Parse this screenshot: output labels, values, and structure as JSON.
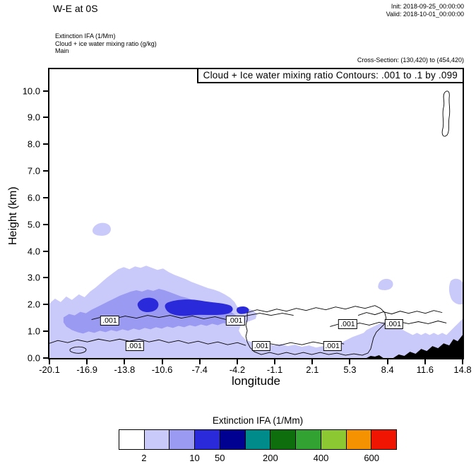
{
  "header": {
    "title": "W-E at 0S",
    "init": "Init: 2018-09-25_00:00:00",
    "valid": "Valid: 2018-10-01_00:00:00"
  },
  "annotations": {
    "field1": "Extinction IFA  (1/Mm)",
    "field2": "Cloud + ice water mixing ratio  (g/kg)",
    "field3": "Main",
    "cross_section": "Cross-Section: (130,420) to (454,420)"
  },
  "plot": {
    "contour_title": "Cloud + Ice water mixing ratio Contours: .001 to .1 by .099",
    "xlabel": "longitude",
    "ylabel": "Height (km)",
    "x_range": [
      -20.1,
      14.8
    ],
    "y_range_km": [
      0,
      10.81
    ],
    "x_ticks": [
      "-20.1",
      "-16.9",
      "-13.8",
      "-10.6",
      "-7.4",
      "-4.2",
      "-1.1",
      "2.1",
      "5.3",
      "8.4",
      "11.6",
      "14.8"
    ],
    "y_ticks": [
      "0.0",
      "1.0",
      "2.0",
      "3.0",
      "4.0",
      "5.0",
      "6.0",
      "7.0",
      "8.0",
      "9.0",
      "10.0"
    ],
    "contour_labels": [
      {
        "value": ".001",
        "lon": -15.0,
        "km": 1.41
      },
      {
        "value": ".001",
        "lon": -12.9,
        "km": 0.45
      },
      {
        "value": ".001",
        "lon": -4.4,
        "km": 1.41
      },
      {
        "value": ".001",
        "lon": -2.2,
        "km": 0.45
      },
      {
        "value": ".001",
        "lon": 3.8,
        "km": 0.45
      },
      {
        "value": ".001",
        "lon": 5.1,
        "km": 1.26
      },
      {
        "value": ".001",
        "lon": 9.0,
        "km": 1.26
      }
    ]
  },
  "colorbar": {
    "title": "Extinction IFA  (1/Mm)",
    "colors": [
      "#ffffff",
      "#cacafa",
      "#9a9af2",
      "#2a2ada",
      "#000091",
      "#008b8b",
      "#0e6e0e",
      "#32a332",
      "#8cc832",
      "#f59202",
      "#f01402"
    ],
    "labels": [
      {
        "text": "2",
        "boundary_index": 1
      },
      {
        "text": "10",
        "boundary_index": 3
      },
      {
        "text": "50",
        "boundary_index": 4
      },
      {
        "text": "200",
        "boundary_index": 6
      },
      {
        "text": "400",
        "boundary_index": 8
      },
      {
        "text": "600",
        "boundary_index": 10
      }
    ]
  },
  "chart_data": {
    "type": "heatmap",
    "subtype": "vertical-cross-section-filled-contour",
    "title": "Cloud + Ice water mixing ratio Contours: .001 to .1 by .099",
    "xlabel": "longitude",
    "ylabel": "Height (km)",
    "xlim": [
      -20.1,
      14.8
    ],
    "ylim": [
      0,
      10.8
    ],
    "x_ticks": [
      -20.1,
      -16.9,
      -13.8,
      -10.6,
      -7.4,
      -4.2,
      -1.1,
      2.1,
      5.3,
      8.4,
      11.6,
      14.8
    ],
    "y_ticks": [
      0,
      1,
      2,
      3,
      4,
      5,
      6,
      7,
      8,
      9,
      10
    ],
    "grid": false,
    "legend_position": "bottom-colorbar",
    "line_contours": {
      "variable": "Cloud + Ice water mixing ratio (g/kg)",
      "levels": [
        0.001,
        0.1
      ],
      "labeled_level": 0.001,
      "label_positions_lon_km": [
        [
          -15.0,
          1.41
        ],
        [
          -12.9,
          0.45
        ],
        [
          -4.4,
          1.41
        ],
        [
          -2.2,
          0.45
        ],
        [
          3.8,
          0.45
        ],
        [
          5.1,
          1.26
        ],
        [
          9.0,
          1.26
        ]
      ]
    },
    "fill_contours": {
      "variable": "Extinction IFA (1/Mm)",
      "boundary_labels": [
        2,
        10,
        50,
        200,
        400,
        600
      ],
      "palette": [
        "#ffffff",
        "#cacafa",
        "#9a9af2",
        "#2a2ada",
        "#000091",
        "#008b8b",
        "#0e6e0e",
        "#32a332",
        "#8cc832",
        "#f59202",
        "#f01402"
      ],
      "regions": [
        {
          "value_range": "2-10",
          "desc": "shallow cloud deck 0 to 3.4 km from lon -20.1 to -3.5; thin broken layer below ~1.5 km from lon -3.5 to 12; small blob near lon -15.8 at 4.7-5.2 km; blob near lon 8.2 at 2.6-3.0 km; patch at right edge 2-3 km; unfilled thin cloud outline near lon 13.4 at 8.4-10.0 km"
        },
        {
          "value_range": "10-50",
          "desc": "band 1.2-2.6 km between lon -19 and -3.8"
        },
        {
          "value_range": "50-200",
          "desc": "small cores 1.6-2.2 km between lon -12.5 and -4.5"
        }
      ]
    },
    "terrain": {
      "fill": "#000000",
      "profile_lon_km": [
        [
          9.0,
          0.0
        ],
        [
          10.5,
          0.15
        ],
        [
          12.0,
          0.35
        ],
        [
          13.5,
          0.55
        ],
        [
          14.8,
          0.8
        ]
      ]
    }
  }
}
